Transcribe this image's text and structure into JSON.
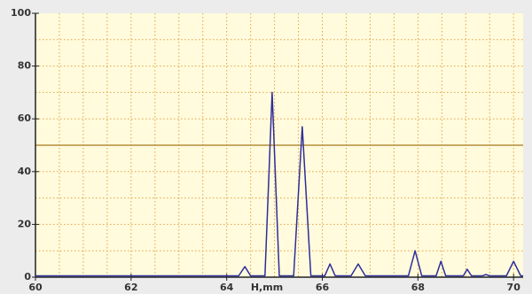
{
  "chart_data": {
    "type": "line",
    "xlabel": "H,mm",
    "x": [
      60,
      64.25,
      64.38,
      64.5,
      64.8,
      64.95,
      65.1,
      65.4,
      65.58,
      65.76,
      66.05,
      66.16,
      66.27,
      66.6,
      66.75,
      66.9,
      67.8,
      67.94,
      68.08,
      68.38,
      68.48,
      68.58,
      68.95,
      69.03,
      69.12,
      69.35,
      69.42,
      69.5,
      69.85,
      70,
      70.15,
      70.2
    ],
    "series": [
      {
        "color": "#2e2e9a",
        "values": [
          0.5,
          0.5,
          4,
          0.5,
          0.5,
          70,
          0.5,
          0.5,
          57,
          0.5,
          0.5,
          5,
          0.5,
          0.5,
          5,
          0.5,
          0.5,
          10,
          0.5,
          0.5,
          6,
          0.5,
          0.5,
          3,
          0.5,
          0.5,
          1,
          0.5,
          0.5,
          6,
          0.5,
          0.5
        ]
      }
    ],
    "xlim": [
      60,
      70.2
    ],
    "ylim": [
      0,
      100
    ],
    "xticks": [
      60,
      62,
      64,
      66,
      68,
      70
    ],
    "yticks": [
      0,
      20,
      40,
      60,
      80,
      100
    ],
    "xgrid": [
      60.5,
      61,
      61.5,
      62,
      62.5,
      63,
      63.5,
      64,
      64.5,
      65,
      65.5,
      66,
      66.5,
      67,
      67.5,
      68,
      68.5,
      69,
      69.5,
      70
    ],
    "ygrid": [
      10,
      20,
      30,
      40,
      50,
      60,
      70,
      80,
      90
    ],
    "threshold": 50,
    "threshold_color": "#a8781e",
    "grid": true
  }
}
